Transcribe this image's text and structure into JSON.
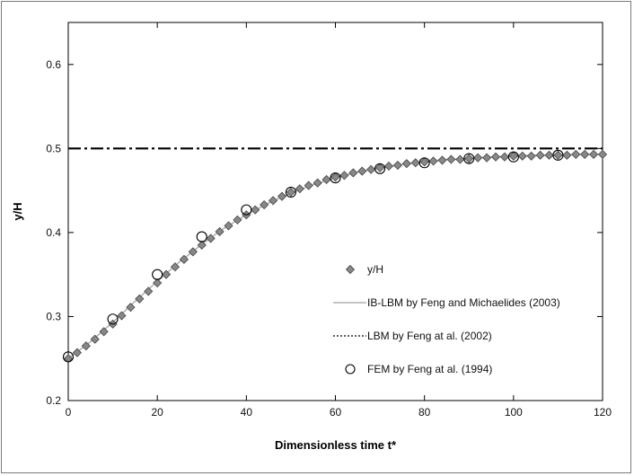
{
  "chart_data": {
    "type": "scatter",
    "title": "",
    "xlabel": "Dimensionless time t*",
    "ylabel": "y/H",
    "xlim": [
      0,
      120
    ],
    "ylim": [
      0.2,
      0.65
    ],
    "x_ticks": [
      0,
      20,
      40,
      60,
      80,
      100,
      120
    ],
    "y_ticks": [
      0.2,
      0.3,
      0.4,
      0.5,
      0.6
    ],
    "y_tick_labels": [
      "0.2",
      "0.3",
      "0.4",
      "0.5",
      "0.6"
    ],
    "grid": false,
    "legend_position": "bottom-right",
    "reference_line": {
      "y": 0.5,
      "style": "dash-dot",
      "color": "#000000"
    },
    "series": [
      {
        "name": "y/H",
        "marker": "diamond",
        "color": "#888888",
        "x": [
          0,
          2,
          4,
          6,
          8,
          10,
          12,
          14,
          16,
          18,
          20,
          22,
          24,
          26,
          28,
          30,
          32,
          34,
          36,
          38,
          40,
          42,
          44,
          46,
          48,
          50,
          52,
          54,
          56,
          58,
          60,
          62,
          64,
          66,
          68,
          70,
          72,
          74,
          76,
          78,
          80,
          82,
          84,
          86,
          88,
          90,
          92,
          94,
          96,
          98,
          100,
          102,
          104,
          106,
          108,
          110,
          112,
          114,
          116,
          118,
          120
        ],
        "y": [
          0.25,
          0.257,
          0.265,
          0.273,
          0.282,
          0.291,
          0.301,
          0.311,
          0.321,
          0.33,
          0.34,
          0.35,
          0.359,
          0.368,
          0.377,
          0.385,
          0.393,
          0.401,
          0.408,
          0.415,
          0.421,
          0.427,
          0.433,
          0.438,
          0.443,
          0.448,
          0.452,
          0.456,
          0.459,
          0.463,
          0.466,
          0.468,
          0.471,
          0.473,
          0.475,
          0.477,
          0.479,
          0.48,
          0.482,
          0.483,
          0.484,
          0.485,
          0.486,
          0.487,
          0.487,
          0.488,
          0.489,
          0.489,
          0.49,
          0.49,
          0.491,
          0.491,
          0.491,
          0.492,
          0.492,
          0.492,
          0.492,
          0.493,
          0.493,
          0.493,
          0.493
        ]
      },
      {
        "name": "IB-LBM by Feng and Michaelides (2003)",
        "line": "solid",
        "color": "#b0b0b0",
        "x": [
          0,
          5,
          10,
          15,
          20,
          25,
          30,
          35,
          40,
          45,
          50,
          55,
          60,
          65,
          70,
          75,
          80,
          85,
          90,
          95,
          100,
          105,
          110,
          115,
          120
        ],
        "y": [
          0.25,
          0.27,
          0.293,
          0.318,
          0.342,
          0.365,
          0.386,
          0.405,
          0.421,
          0.435,
          0.447,
          0.457,
          0.465,
          0.472,
          0.477,
          0.481,
          0.484,
          0.487,
          0.488,
          0.49,
          0.491,
          0.492,
          0.492,
          0.493,
          0.493
        ]
      },
      {
        "name": "LBM by Feng at al. (2002)",
        "line": "dotted",
        "color": "#000000",
        "x": [],
        "y": []
      },
      {
        "name": "FEM by Feng at al. (1994)",
        "marker": "open-circle",
        "color": "#000000",
        "x": [
          0,
          10,
          20,
          30,
          40,
          50,
          60,
          70,
          80,
          90,
          100,
          110
        ],
        "y": [
          0.252,
          0.297,
          0.35,
          0.395,
          0.427,
          0.448,
          0.465,
          0.476,
          0.483,
          0.488,
          0.49,
          0.492
        ]
      }
    ]
  }
}
